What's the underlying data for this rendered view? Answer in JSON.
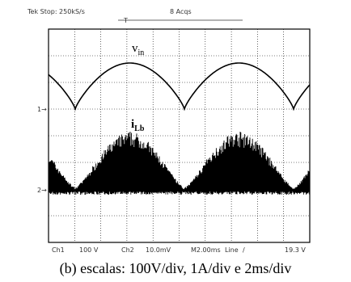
{
  "header": {
    "status": "Tek Stop: 250kS/s",
    "acqs": "8 Acqs",
    "trigger": "T"
  },
  "traces": {
    "vin": {
      "main": "v",
      "sub": "in"
    },
    "ilb": {
      "main": "i",
      "sub": "Lb"
    },
    "ch1_marker": "1→",
    "ch2_marker": "2→"
  },
  "footer": {
    "ch1": "Ch1",
    "ch1_scale": "100 V",
    "ch2": "Ch2",
    "ch2_scale": "10.0mV",
    "time": "M2.00ms",
    "source": "Line",
    "slope": "/",
    "level": "19.3 V"
  },
  "caption": "(b) escalas: 100V/div, 1A/div e 2ms/div"
}
